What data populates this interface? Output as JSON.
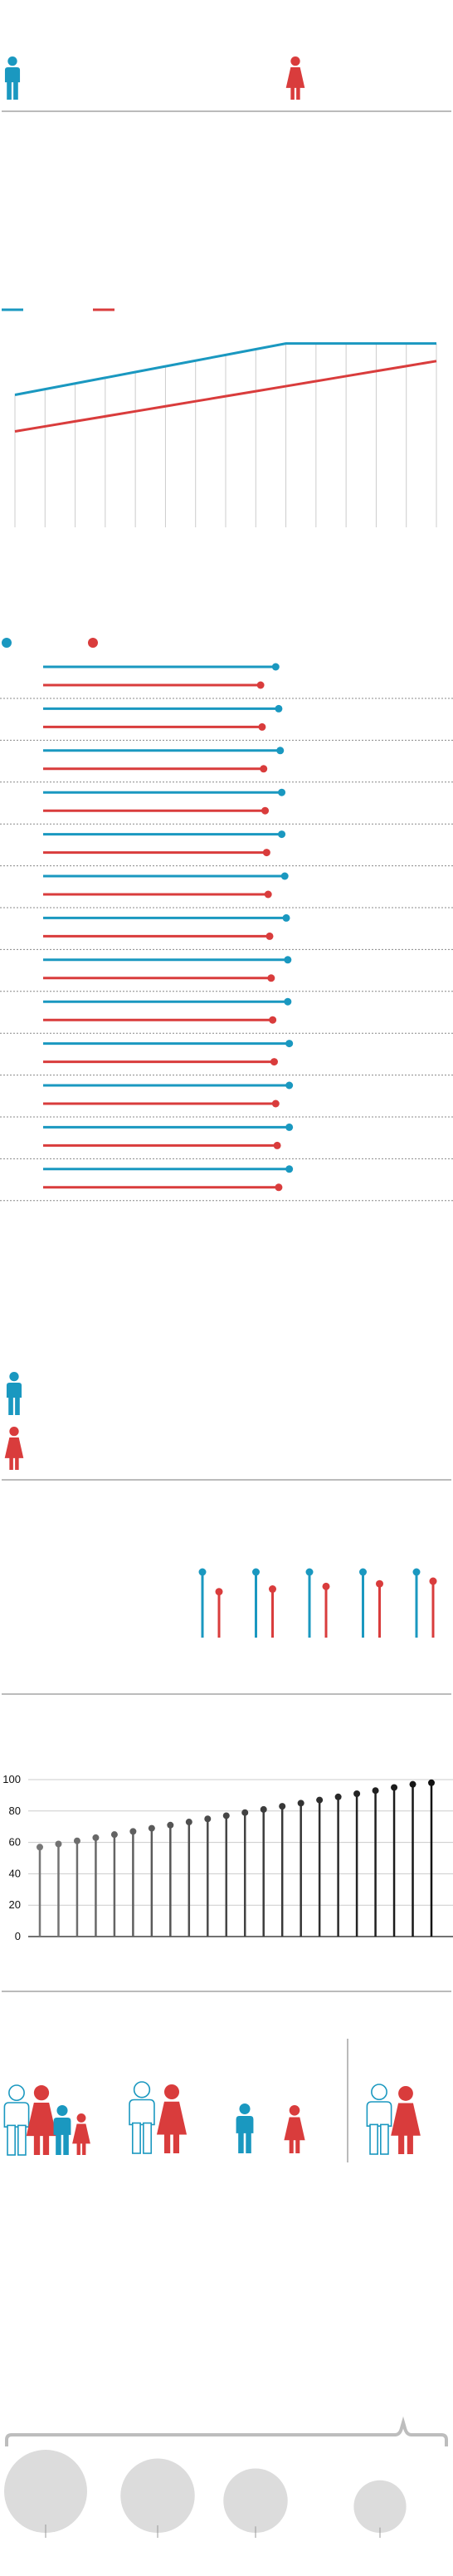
{
  "colors": {
    "male": "#1a98c0",
    "female": "#d93c3c",
    "divider": "#bbbbbb",
    "grid": "#cccccc",
    "dotted": "#888888",
    "stem_light": "#777777",
    "stem_dark": "#111111",
    "silhouette": "#dcdcdc"
  },
  "icons": {
    "header_male": "male-person-icon",
    "header_female": "female-person-icon",
    "family": "family-icon",
    "couple": "couple-icon",
    "pair": "single-pair-icon"
  },
  "chart_data": [
    {
      "type": "line",
      "grid": "vertical",
      "legend": "top-left",
      "x": [
        0,
        1,
        2,
        3,
        4,
        5,
        6,
        7,
        8,
        9,
        10,
        11,
        12,
        13,
        14
      ],
      "series": [
        {
          "color": "#1a98c0",
          "values": [
            58,
            60.5,
            63,
            65.5,
            68,
            70.5,
            73,
            75.5,
            78,
            80.5,
            80.5,
            80.5,
            80.5,
            80.5,
            80.5
          ]
        },
        {
          "color": "#d93c3c",
          "values": [
            42,
            44.2,
            46.4,
            48.6,
            50.8,
            53,
            55.2,
            57.4,
            59.6,
            61.8,
            64,
            66.2,
            68.4,
            70.6,
            72.8
          ]
        }
      ],
      "ylim": [
        0,
        100
      ]
    },
    {
      "type": "bar",
      "orientation": "horizontal",
      "legend": "top-left",
      "rows": 13,
      "series": [
        {
          "color": "#1a98c0",
          "values": [
            77,
            78,
            78.5,
            79,
            79,
            80,
            80.5,
            81,
            81,
            81.5,
            81.5,
            81.5,
            81.5
          ]
        },
        {
          "color": "#d93c3c",
          "values": [
            72,
            72.5,
            73,
            73.5,
            74,
            74.5,
            75,
            75.5,
            76,
            76.5,
            77,
            77.5,
            78
          ]
        }
      ],
      "xlim": [
        0,
        100
      ]
    },
    {
      "type": "bar",
      "style": "lollipop",
      "groups": 5,
      "series": [
        {
          "color": "#1a98c0",
          "values": [
            100,
            100,
            100,
            100,
            100
          ]
        },
        {
          "color": "#d93c3c",
          "values": [
            70,
            74,
            78,
            82,
            86
          ]
        }
      ],
      "ylim": [
        0,
        100
      ]
    },
    {
      "type": "bar",
      "style": "lollipop",
      "y_ticks": [
        "0",
        "20",
        "40",
        "60",
        "80",
        "100"
      ],
      "ylim": [
        0,
        100
      ],
      "values": [
        57,
        59,
        61,
        63,
        65,
        67,
        69,
        71,
        73,
        75,
        77,
        79,
        81,
        83,
        85,
        87,
        89,
        91,
        93,
        95,
        97,
        98
      ]
    },
    {
      "type": "scatter",
      "style": "bubble",
      "values": [
        100,
        80,
        60,
        40
      ]
    }
  ]
}
